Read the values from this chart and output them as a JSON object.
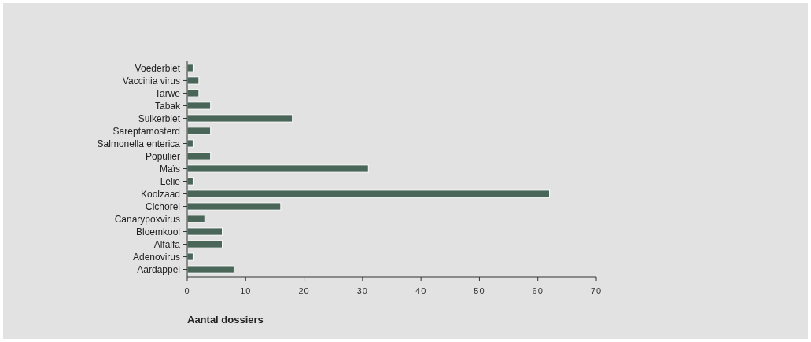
{
  "chart_data": {
    "type": "bar",
    "orientation": "horizontal",
    "xlabel": "Aantal dossiers",
    "categories": [
      "Voederbiet",
      "Vaccinia virus",
      "Tarwe",
      "Tabak",
      "Suikerbiet",
      "Sareptamosterd",
      "Salmonella enterica",
      "Populier",
      "Maïs",
      "Lelie",
      "Koolzaad",
      "Cichorei",
      "Canarypoxvirus",
      "Bloemkool",
      "Alfalfa",
      "Adenovirus",
      "Aardappel"
    ],
    "values": [
      1,
      2,
      2,
      4,
      18,
      4,
      1,
      4,
      31,
      1,
      62,
      16,
      3,
      6,
      6,
      1,
      8
    ],
    "color": "#4a6659",
    "xlim": [
      0,
      70
    ],
    "xticks": [
      0,
      10,
      20,
      30,
      40,
      50,
      60,
      70
    ],
    "grid": false
  }
}
